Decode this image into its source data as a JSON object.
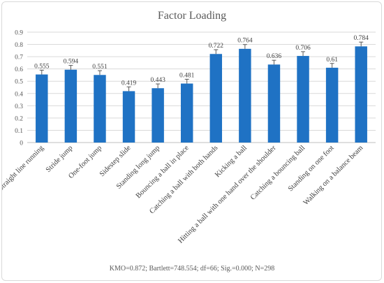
{
  "chart_data": {
    "type": "bar",
    "title": "Factor Loading",
    "categories": [
      "Straight line running",
      "Stride jump",
      "One-foot jump",
      "Sidestep slide",
      "Standing long jump",
      "Bouncing a ball in place",
      "Catching a ball with both hands",
      "Kicking a ball",
      "Hitting a ball with one hand over the shoulder",
      "Catching a bouncing ball",
      "Standing on one foot",
      "Walking on a balance beam"
    ],
    "values": [
      0.555,
      0.594,
      0.551,
      0.419,
      0.443,
      0.481,
      0.722,
      0.764,
      0.636,
      0.706,
      0.61,
      0.784
    ],
    "data_labels": [
      "0.555",
      "0.594",
      "0.551",
      "0.419",
      "0.443",
      "0.481",
      "0.722",
      "0.764",
      "0.636",
      "0.706",
      "0.61",
      "0.784"
    ],
    "error_bars": true,
    "error": 0.035,
    "ylim": [
      0,
      0.9
    ],
    "yticks": [
      "0",
      "0.1",
      "0.2",
      "0.3",
      "0.4",
      "0.5",
      "0.6",
      "0.7",
      "0.8",
      "0.9"
    ],
    "grid": true,
    "bar_color": "#1F72C4",
    "grid_color": "#d9d9d9",
    "footnote": "KMO=0.872; Bartlett=748.554; df=66; Sig.=0.000; N=298"
  }
}
